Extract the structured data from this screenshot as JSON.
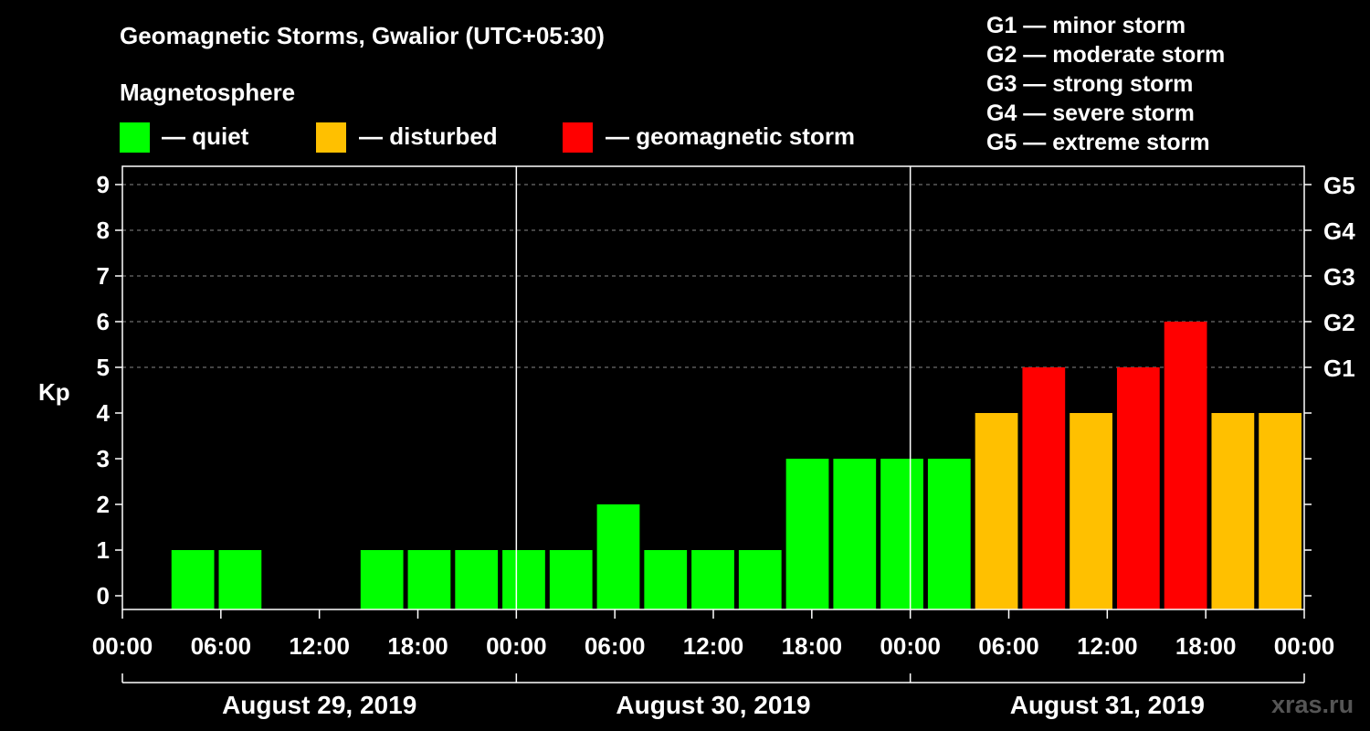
{
  "colors": {
    "quiet": "#00ff00",
    "disturbed": "#ffc000",
    "storm": "#ff0000",
    "background": "#000000",
    "axis": "#ffffff",
    "grid": "#888888",
    "watermark": "#555555"
  },
  "chart_data": {
    "type": "bar",
    "title": "Geomagnetic Storms, Gwalior (UTC+05:30)",
    "ylabel": "Kp",
    "ylim": [
      0,
      9
    ],
    "yticks": [
      "0",
      "1",
      "2",
      "3",
      "4",
      "5",
      "6",
      "7",
      "8",
      "9"
    ],
    "right_axis": [
      {
        "label": "G1",
        "kp": 5
      },
      {
        "label": "G2",
        "kp": 6
      },
      {
        "label": "G3",
        "kp": 7
      },
      {
        "label": "G4",
        "kp": 8
      },
      {
        "label": "G5",
        "kp": 9
      }
    ],
    "x_tick_labels": [
      "00:00",
      "06:00",
      "12:00",
      "18:00",
      "00:00",
      "06:00",
      "12:00",
      "18:00",
      "00:00",
      "06:00",
      "12:00",
      "18:00",
      "00:00"
    ],
    "days": [
      "August 29, 2019",
      "August 30, 2019",
      "August 31, 2019"
    ],
    "bin_hours": 3,
    "values": [
      0,
      1,
      1,
      0,
      0,
      1,
      1,
      1,
      1,
      1,
      2,
      1,
      1,
      1,
      3,
      3,
      3,
      3,
      4,
      5,
      4,
      5,
      6,
      4,
      4
    ],
    "levels": [
      "quiet",
      "quiet",
      "quiet",
      "quiet",
      "quiet",
      "quiet",
      "quiet",
      "quiet",
      "quiet",
      "quiet",
      "quiet",
      "quiet",
      "quiet",
      "quiet",
      "quiet",
      "quiet",
      "quiet",
      "quiet",
      "disturbed",
      "storm",
      "disturbed",
      "storm",
      "storm",
      "disturbed",
      "disturbed"
    ],
    "grid": true
  },
  "legend": {
    "heading": "Magnetosphere",
    "items": [
      {
        "key": "quiet",
        "label": "— quiet"
      },
      {
        "key": "disturbed",
        "label": "— disturbed"
      },
      {
        "key": "storm",
        "label": "— geomagnetic storm"
      }
    ]
  },
  "storm_scale": [
    "G1 — minor storm",
    "G2 — moderate storm",
    "G3 — strong storm",
    "G4 — severe storm",
    "G5 — extreme storm"
  ],
  "watermark": "xras.ru"
}
